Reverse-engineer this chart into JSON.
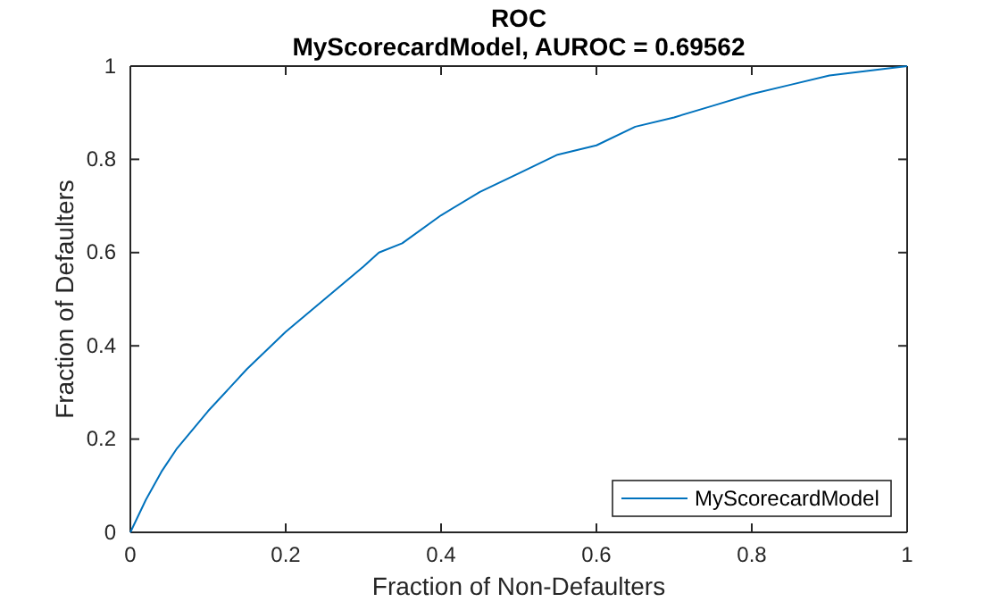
{
  "chart_data": {
    "type": "line",
    "title": "ROC",
    "subtitle": "MyScorecardModel, AUROC = 0.69562",
    "xlabel": "Fraction of Non-Defaulters",
    "ylabel": "Fraction of Defaulters",
    "x": [
      0,
      0.02,
      0.04,
      0.06,
      0.1,
      0.15,
      0.2,
      0.25,
      0.3,
      0.32,
      0.35,
      0.4,
      0.45,
      0.5,
      0.55,
      0.6,
      0.65,
      0.7,
      0.75,
      0.8,
      0.85,
      0.9,
      0.95,
      1
    ],
    "series": [
      {
        "name": "MyScorecardModel",
        "color": "#0072bd",
        "values": [
          0,
          0.07,
          0.13,
          0.18,
          0.26,
          0.35,
          0.43,
          0.5,
          0.57,
          0.6,
          0.62,
          0.68,
          0.73,
          0.77,
          0.81,
          0.83,
          0.87,
          0.89,
          0.915,
          0.94,
          0.96,
          0.98,
          0.99,
          1
        ]
      }
    ],
    "xlim": [
      0,
      1
    ],
    "ylim": [
      0,
      1
    ],
    "xticks": [
      0,
      0.2,
      0.4,
      0.6,
      0.8,
      1
    ],
    "yticks": [
      0,
      0.2,
      0.4,
      0.6,
      0.8,
      1
    ],
    "legend": "bottom right",
    "marker": "none",
    "line_style": "solid"
  }
}
